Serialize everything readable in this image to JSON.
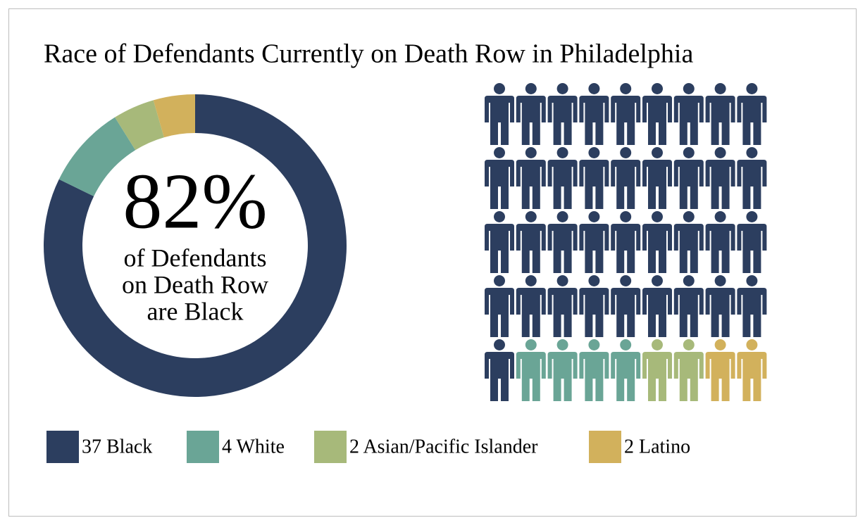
{
  "chart_data": {
    "type": "donut",
    "title": "Race of Defendants Currently on Death Row in Philadelphia",
    "annotation": {
      "value": 82,
      "label": "82%"
    },
    "annotation_text": [
      "of Defendants",
      "on Death Row",
      "are Black"
    ],
    "categories": [
      "37 Black",
      "4 White",
      "2 Asian/Pacific Islander",
      "2 Latino"
    ],
    "values": [
      37,
      4,
      2,
      2
    ],
    "colors": [
      "#2c3e5f",
      "#6aa596",
      "#a7b97a",
      "#d2b15c"
    ]
  }
}
